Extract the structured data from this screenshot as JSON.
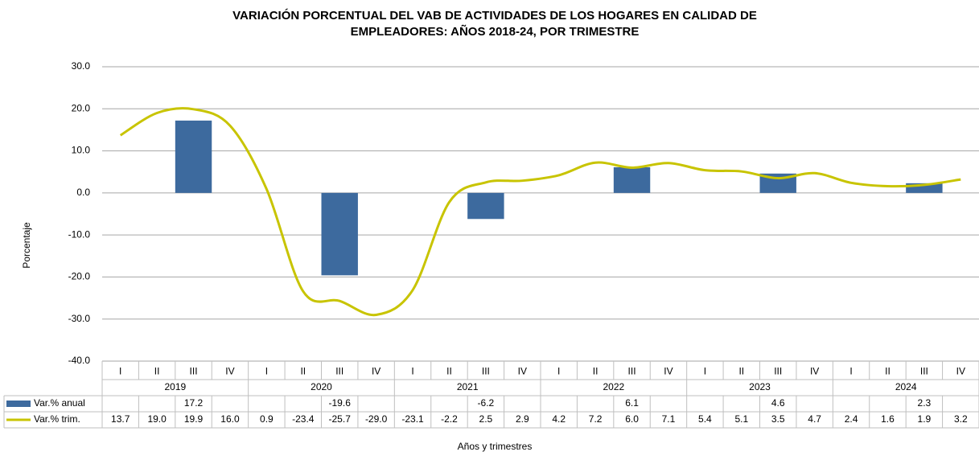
{
  "chart_data": {
    "type": "bar-line",
    "title": [
      "VARIACIÓN PORCENTUAL DEL VAB DE ACTIVIDADES DE LOS HOGARES EN CALIDAD DE",
      "EMPLEADORES: AÑOS 2018-24, POR TRIMESTRE"
    ],
    "y_label": "Porcentaje",
    "x_label": "Años y trimestres",
    "categories": [
      "I",
      "II",
      "III",
      "IV",
      "I",
      "II",
      "III",
      "IV",
      "I",
      "II",
      "III",
      "IV",
      "I",
      "II",
      "III",
      "IV",
      "I",
      "II",
      "III",
      "IV",
      "I",
      "II",
      "III",
      "IV"
    ],
    "groups": [
      "2019",
      "2020",
      "2021",
      "2022",
      "2023",
      "2024"
    ],
    "ylim": [
      -40,
      30
    ],
    "yticks": [
      {
        "value": 30,
        "label": "30.0"
      },
      {
        "value": 20,
        "label": "20.0"
      },
      {
        "value": 10,
        "label": "10.0"
      },
      {
        "value": 0,
        "label": "0.0"
      },
      {
        "value": -10,
        "label": "-10.0"
      },
      {
        "value": -20,
        "label": "-20.0"
      },
      {
        "value": -30,
        "label": "-30.0"
      },
      {
        "value": -40,
        "label": "-40.0"
      }
    ],
    "grid": true,
    "series": [
      {
        "name": "Var.% anual",
        "type": "bar",
        "color": "#3d6a9e",
        "values": [
          null,
          null,
          17.2,
          null,
          null,
          null,
          -19.6,
          null,
          null,
          null,
          -6.2,
          null,
          null,
          null,
          6.1,
          null,
          null,
          null,
          4.6,
          null,
          null,
          null,
          2.3,
          null
        ],
        "value_labels": [
          null,
          null,
          "17.2",
          null,
          null,
          null,
          "-19.6",
          null,
          null,
          null,
          "-6.2",
          null,
          null,
          null,
          "6.1",
          null,
          null,
          null,
          "4.6",
          null,
          null,
          null,
          "2.3",
          null
        ]
      },
      {
        "name": "Var.% trim.",
        "type": "line",
        "color": "#c8c400",
        "values": [
          13.7,
          19.0,
          19.9,
          16.0,
          0.9,
          -23.4,
          -25.7,
          -29.0,
          -23.1,
          -2.2,
          2.5,
          2.9,
          4.2,
          7.2,
          6.0,
          7.1,
          5.4,
          5.1,
          3.5,
          4.7,
          2.4,
          1.6,
          1.9,
          3.2
        ],
        "value_labels": [
          "13.7",
          "19.0",
          "19.9",
          "16.0",
          "0.9",
          "-23.4",
          "-25.7",
          "-29.0",
          "-23.1",
          "-2.2",
          "2.5",
          "2.9",
          "4.2",
          "7.2",
          "6.0",
          "7.1",
          "5.4",
          "5.1",
          "3.5",
          "4.7",
          "2.4",
          "1.6",
          "1.9",
          "3.2"
        ]
      }
    ]
  }
}
